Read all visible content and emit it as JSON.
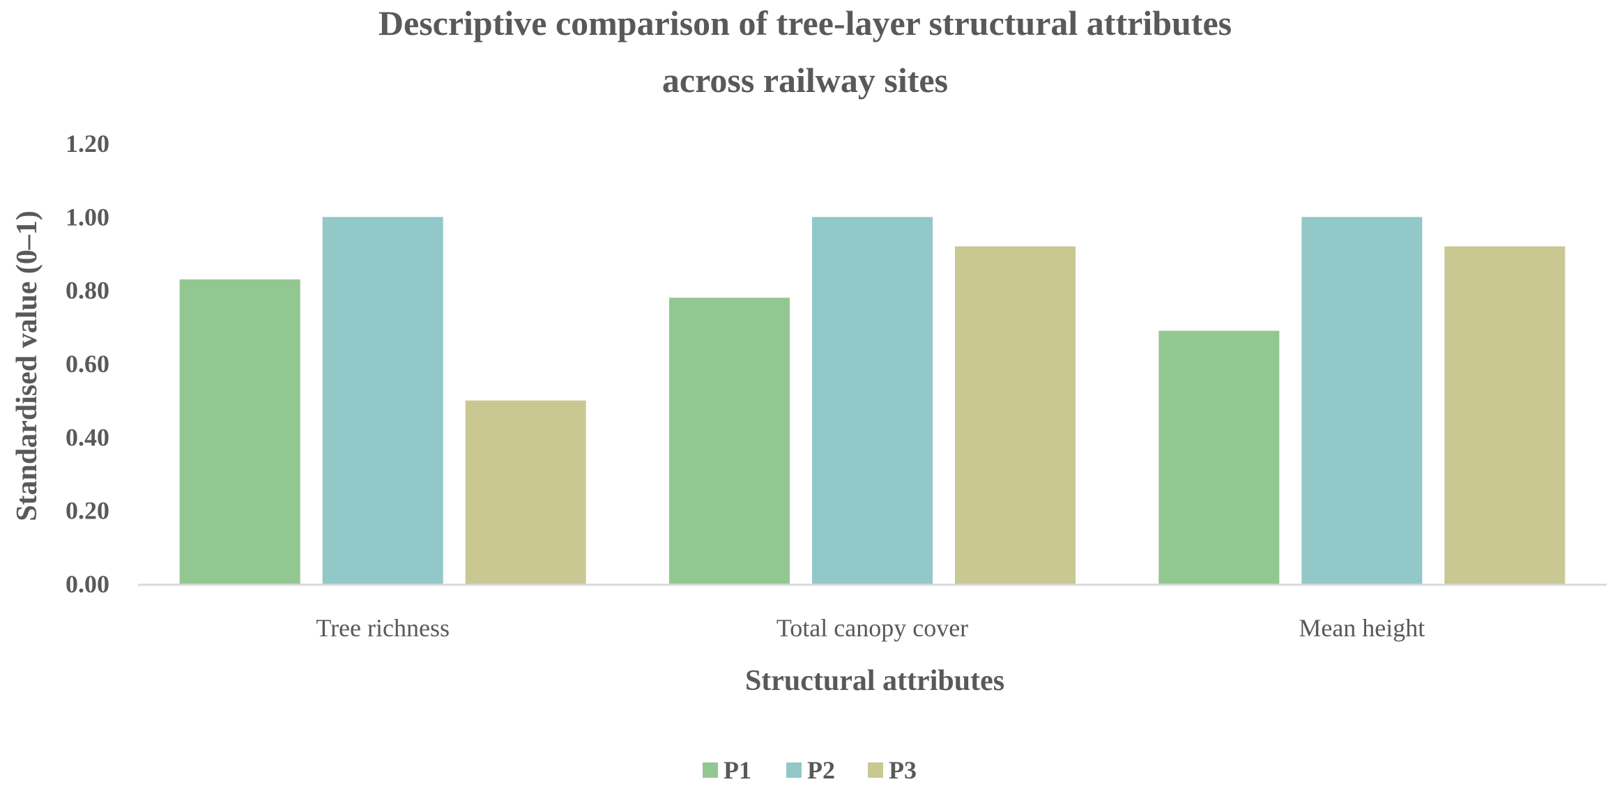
{
  "chart_data": {
    "type": "bar",
    "title": "Descriptive comparison of tree-layer structural attributes across railway sites",
    "title_lines": [
      "Descriptive comparison of tree-layer structural attributes",
      "across railway sites"
    ],
    "xlabel": "Structural attributes",
    "ylabel": "Standardised value (0–1)",
    "categories": [
      "Tree richness",
      "Total canopy cover",
      "Mean height"
    ],
    "series": [
      {
        "name": "P1",
        "color": "#93c792",
        "values": [
          0.83,
          0.78,
          0.69
        ]
      },
      {
        "name": "P2",
        "color": "#92c8c7",
        "values": [
          1.0,
          1.0,
          1.0
        ]
      },
      {
        "name": "P3",
        "color": "#c9c893",
        "values": [
          0.5,
          0.92,
          0.92
        ]
      }
    ],
    "ylim": [
      0,
      1.2
    ],
    "yticks": [
      "0.00",
      "0.20",
      "0.40",
      "0.60",
      "0.80",
      "1.00",
      "1.20"
    ],
    "grid": false,
    "legend_position": "bottom"
  }
}
